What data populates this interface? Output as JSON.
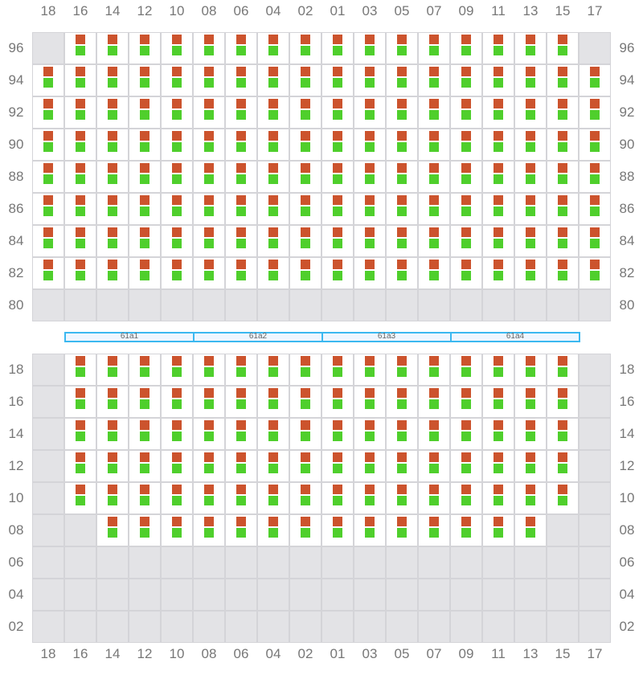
{
  "columns": [
    "18",
    "16",
    "14",
    "12",
    "10",
    "08",
    "06",
    "04",
    "02",
    "01",
    "03",
    "05",
    "07",
    "09",
    "11",
    "13",
    "15",
    "17"
  ],
  "colors": {
    "upper_marker": "#cc532d",
    "lower_marker": "#4fcf2c",
    "empty": "#e3e3e6",
    "segment_border": "#3bb8f0"
  },
  "top_grid": {
    "rows": [
      {
        "label": "96",
        "occupancy": "011111111111111110"
      },
      {
        "label": "94",
        "occupancy": "111111111111111111"
      },
      {
        "label": "92",
        "occupancy": "111111111111111111"
      },
      {
        "label": "90",
        "occupancy": "111111111111111111"
      },
      {
        "label": "88",
        "occupancy": "111111111111111111"
      },
      {
        "label": "86",
        "occupancy": "111111111111111111"
      },
      {
        "label": "84",
        "occupancy": "111111111111111111"
      },
      {
        "label": "82",
        "occupancy": "111111111111111111"
      },
      {
        "label": "80",
        "occupancy": "000000000000000000"
      }
    ]
  },
  "segments": [
    "61a1",
    "61a2",
    "61a3",
    "61a4"
  ],
  "bottom_grid": {
    "rows": [
      {
        "label": "18",
        "occupancy": "011111111111111110"
      },
      {
        "label": "16",
        "occupancy": "011111111111111110"
      },
      {
        "label": "14",
        "occupancy": "011111111111111110"
      },
      {
        "label": "12",
        "occupancy": "011111111111111110"
      },
      {
        "label": "10",
        "occupancy": "011111111111111110"
      },
      {
        "label": "08",
        "occupancy": "001111111111111100"
      },
      {
        "label": "06",
        "occupancy": "000000000000000000"
      },
      {
        "label": "04",
        "occupancy": "000000000000000000"
      },
      {
        "label": "02",
        "occupancy": "000000000000000000"
      }
    ]
  }
}
